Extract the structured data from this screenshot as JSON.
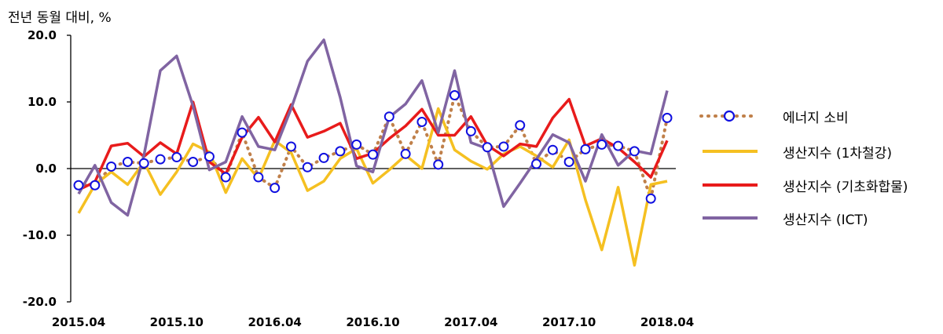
{
  "chart_data": {
    "type": "line",
    "ylabel": "전년 동월 대비, %",
    "ylim": [
      -20,
      20
    ],
    "yticks": [
      {
        "value": 20,
        "label": "20.0"
      },
      {
        "value": 10,
        "label": "10.0"
      },
      {
        "value": 0,
        "label": "0.0"
      },
      {
        "value": -10,
        "label": "-10.0"
      },
      {
        "value": -20,
        "label": "-20.0"
      }
    ],
    "x_tick_labels": [
      {
        "index": 0,
        "label": "2015.04"
      },
      {
        "index": 6,
        "label": "2015.10"
      },
      {
        "index": 12,
        "label": "2016.04"
      },
      {
        "index": 18,
        "label": "2016.10"
      },
      {
        "index": 24,
        "label": "2017.04"
      },
      {
        "index": 30,
        "label": "2017.10"
      },
      {
        "index": 36,
        "label": "2018.04"
      }
    ],
    "x": [
      "2015.04",
      "2015.05",
      "2015.06",
      "2015.07",
      "2015.08",
      "2015.09",
      "2015.10",
      "2015.11",
      "2015.12",
      "2016.01",
      "2016.02",
      "2016.03",
      "2016.04",
      "2016.05",
      "2016.06",
      "2016.07",
      "2016.08",
      "2016.09",
      "2016.10",
      "2016.11",
      "2016.12",
      "2017.01",
      "2017.02",
      "2017.03",
      "2017.04",
      "2017.05",
      "2017.06",
      "2017.07",
      "2017.08",
      "2017.09",
      "2017.10",
      "2017.11",
      "2017.12",
      "2018.01",
      "2018.02",
      "2018.03",
      "2018.04"
    ],
    "series": [
      {
        "name": "에너지 소비",
        "color": "#c0804a",
        "marker_color": "#1010e0",
        "style": "dotted-with-circles",
        "values": [
          -2.5,
          -2.5,
          0.3,
          1.0,
          0.8,
          1.4,
          1.7,
          1.0,
          1.8,
          -1.3,
          5.4,
          -1.3,
          -2.9,
          3.3,
          0.2,
          1.6,
          2.6,
          3.6,
          2.1,
          7.8,
          2.2,
          7.0,
          0.6,
          11.0,
          5.6,
          3.2,
          3.3,
          6.5,
          0.7,
          2.8,
          1.0,
          2.9,
          3.6,
          3.4,
          2.6,
          -4.5,
          7.6
        ]
      },
      {
        "name": "생산지수 (1차철강)",
        "color": "#f5c021",
        "values": [
          -6.7,
          -2.4,
          -0.5,
          -2.4,
          1.0,
          -3.9,
          -0.5,
          3.7,
          2.5,
          -3.6,
          1.5,
          -1.5,
          4.2,
          2.4,
          -3.3,
          -1.9,
          1.5,
          3.0,
          -2.2,
          -0.2,
          2.0,
          0.0,
          9.0,
          2.8,
          1.1,
          -0.1,
          2.2,
          3.3,
          1.9,
          0.2,
          4.3,
          -4.7,
          -12.2,
          -2.8,
          -14.5,
          -2.4,
          -1.9
        ]
      },
      {
        "name": "생산지수 (기초화합물)",
        "color": "#e81b1b",
        "values": [
          -3.2,
          -2.0,
          3.4,
          3.8,
          1.8,
          3.9,
          2.2,
          10.0,
          1.0,
          -0.8,
          4.7,
          7.7,
          4.0,
          9.6,
          4.7,
          5.6,
          6.8,
          1.5,
          2.3,
          4.5,
          6.4,
          8.9,
          5.0,
          5.0,
          7.8,
          3.5,
          1.9,
          3.7,
          3.3,
          7.6,
          10.4,
          3.4,
          4.5,
          3.1,
          1.0,
          -1.3,
          4.2
        ]
      },
      {
        "name": "생산지수 (ICT)",
        "color": "#8064a2",
        "values": [
          -3.8,
          0.5,
          -5.1,
          -7.0,
          2.0,
          14.7,
          16.9,
          9.4,
          -0.2,
          1.0,
          7.8,
          3.3,
          2.8,
          9.0,
          16.1,
          19.3,
          10.7,
          0.4,
          -0.5,
          7.7,
          9.7,
          13.2,
          5.4,
          14.7,
          3.9,
          3.0,
          -5.7,
          -2.2,
          1.4,
          5.1,
          3.9,
          -1.9,
          5.1,
          0.5,
          2.7,
          2.2,
          11.7
        ]
      }
    ]
  }
}
